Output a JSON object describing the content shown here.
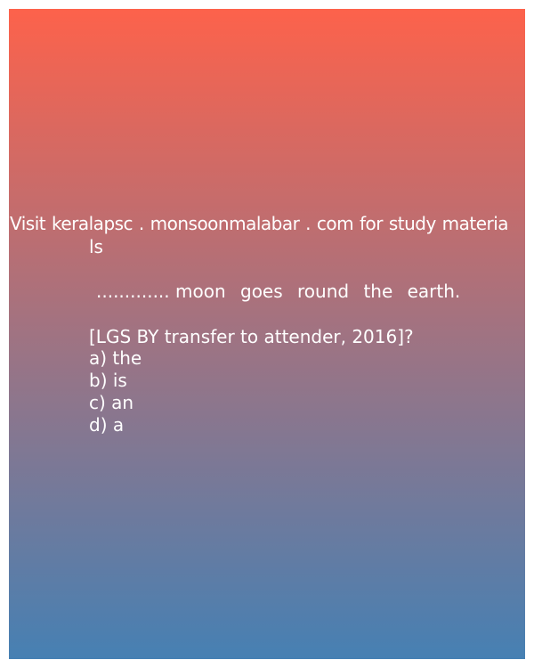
{
  "visit_line": "Visit keralapsc . monsoonmalabar . com for study materia",
  "visit_line_tail": "ls",
  "question": {
    "blank": "............. ",
    "text": "moon goes round the earth."
  },
  "source": "[LGS BY transfer to attender, 2016]?",
  "options": [
    "a) the",
    "b) is",
    "c) an",
    "d) a"
  ],
  "colors": {
    "gradient_top": "#fd624b",
    "gradient_middle": "#a07382",
    "gradient_bottom": "#4680b3",
    "text": "#ffffff"
  }
}
